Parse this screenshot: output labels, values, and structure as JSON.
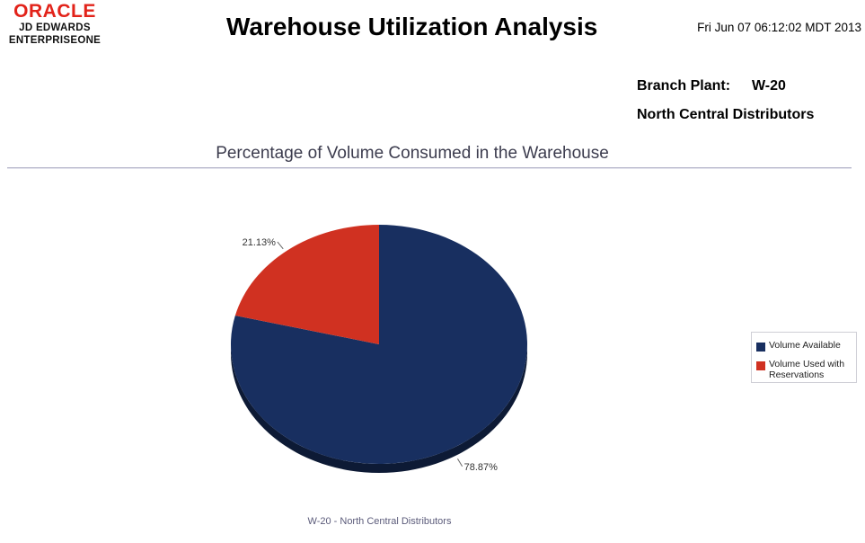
{
  "header": {
    "logo": {
      "brand": "ORACLE",
      "line1": "JD EDWARDS",
      "line2": "ENTERPRISEONE"
    },
    "title": "Warehouse Utilization Analysis",
    "timestamp": "Fri Jun 07 06:12:02 MDT 2013",
    "branch_plant_label": "Branch Plant:",
    "branch_plant_value": "W-20",
    "branch_plant_name": "North Central Distributors"
  },
  "chart_data": {
    "type": "pie",
    "title": "Percentage of Volume Consumed in the Warehouse",
    "footer": "W-20 - North Central Distributors",
    "legend_position": "right",
    "slices": [
      {
        "name": "Volume Available",
        "value": 78.87,
        "label": "78.87%",
        "color": "#182f60"
      },
      {
        "name": "Volume Used with Reservations",
        "value": 21.13,
        "label": "21.13%",
        "color": "#d03121"
      }
    ]
  }
}
